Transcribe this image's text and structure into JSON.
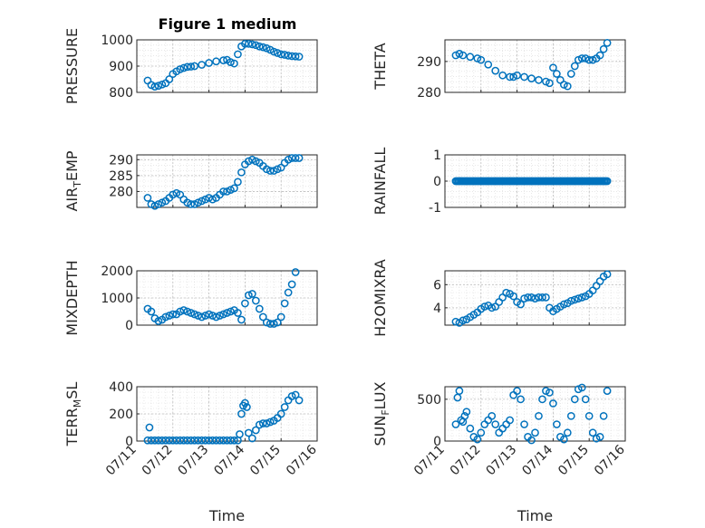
{
  "figure": {
    "title": "Figure 1 medium",
    "marker_color": "#0072BD",
    "grid": "dotted minor + major",
    "x_tick_labels": [
      "07/11",
      "07/12",
      "07/13",
      "07/14",
      "07/15",
      "07/16"
    ]
  },
  "chart_data": [
    {
      "type": "scatter",
      "ylabel": "PRESSURE",
      "title": "Figure 1 medium",
      "xlim": [
        0,
        5
      ],
      "ylim": [
        800,
        1000
      ],
      "yticks": [
        800,
        900,
        1000
      ],
      "x_tick_labels": [],
      "x": [
        0.3,
        0.4,
        0.5,
        0.6,
        0.7,
        0.8,
        0.9,
        1.0,
        1.1,
        1.2,
        1.3,
        1.4,
        1.5,
        1.6,
        1.8,
        2.0,
        2.2,
        2.4,
        2.5,
        2.6,
        2.7,
        2.8,
        2.9,
        3.0,
        3.1,
        3.2,
        3.3,
        3.4,
        3.5,
        3.6,
        3.7,
        3.8,
        3.9,
        4.0,
        4.1,
        4.2,
        4.3,
        4.4,
        4.5
      ],
      "values": [
        845,
        828,
        822,
        825,
        830,
        835,
        850,
        870,
        880,
        888,
        893,
        897,
        898,
        900,
        905,
        912,
        918,
        922,
        924,
        915,
        910,
        945,
        975,
        985,
        985,
        983,
        980,
        975,
        972,
        968,
        962,
        955,
        950,
        945,
        943,
        940,
        938,
        937,
        936
      ]
    },
    {
      "type": "scatter",
      "ylabel": "THETA",
      "xlim": [
        0,
        5
      ],
      "ylim": [
        280,
        297
      ],
      "yticks": [
        280,
        290
      ],
      "x_tick_labels": [],
      "x": [
        0.3,
        0.4,
        0.5,
        0.7,
        0.9,
        1.0,
        1.2,
        1.4,
        1.6,
        1.8,
        1.9,
        2.0,
        2.2,
        2.4,
        2.6,
        2.8,
        2.9,
        3.0,
        3.1,
        3.2,
        3.3,
        3.4,
        3.5,
        3.6,
        3.7,
        3.8,
        3.9,
        4.0,
        4.1,
        4.2,
        4.3,
        4.4,
        4.5
      ],
      "values": [
        292,
        292.5,
        292,
        291.5,
        291,
        290.5,
        289,
        287,
        285.5,
        285,
        285,
        285.5,
        285,
        284.5,
        284,
        283.5,
        283,
        288,
        286,
        284,
        282.5,
        282,
        286,
        288.5,
        290.5,
        291,
        291,
        290.5,
        290.5,
        291,
        292,
        294,
        296
      ]
    },
    {
      "type": "scatter",
      "ylabel": "AIR_TEMP",
      "xlim": [
        0,
        5
      ],
      "ylim": [
        275,
        291.5
      ],
      "yticks": [
        280,
        285,
        290
      ],
      "x_tick_labels": [],
      "x": [
        0.3,
        0.4,
        0.5,
        0.6,
        0.7,
        0.8,
        0.9,
        1.0,
        1.1,
        1.2,
        1.3,
        1.4,
        1.5,
        1.6,
        1.7,
        1.8,
        1.9,
        2.0,
        2.1,
        2.2,
        2.3,
        2.4,
        2.5,
        2.6,
        2.7,
        2.8,
        2.9,
        3.0,
        3.1,
        3.2,
        3.3,
        3.4,
        3.5,
        3.6,
        3.7,
        3.8,
        3.9,
        4.0,
        4.1,
        4.2,
        4.3,
        4.4,
        4.5
      ],
      "values": [
        278,
        276,
        275.5,
        276,
        276.5,
        277,
        278,
        279,
        279.5,
        279,
        277.5,
        276.5,
        276,
        276,
        276.5,
        277,
        277.5,
        278,
        277.5,
        278,
        279,
        280,
        280,
        280.5,
        281,
        283,
        286,
        288.5,
        289.5,
        290,
        289.5,
        289,
        288,
        287,
        286.5,
        286.5,
        287,
        287.5,
        289,
        290,
        290.5,
        290.5,
        290.5
      ]
    },
    {
      "type": "scatter",
      "ylabel": "RAINFALL",
      "xlim": [
        0,
        5
      ],
      "ylim": [
        -1,
        1
      ],
      "yticks": [
        -1,
        0,
        1
      ],
      "x_tick_labels": [],
      "x_range": [
        0.3,
        4.5
      ],
      "values_constant": 0,
      "n_points": 110
    },
    {
      "type": "scatter",
      "ylabel": "MIXDEPTH",
      "xlim": [
        0,
        5
      ],
      "ylim": [
        0,
        2000
      ],
      "yticks": [
        0,
        1000,
        2000
      ],
      "x_tick_labels": [],
      "x": [
        0.3,
        0.4,
        0.5,
        0.6,
        0.7,
        0.8,
        0.9,
        1.0,
        1.1,
        1.2,
        1.3,
        1.4,
        1.5,
        1.6,
        1.7,
        1.8,
        1.9,
        2.0,
        2.1,
        2.2,
        2.3,
        2.4,
        2.5,
        2.6,
        2.7,
        2.8,
        2.9,
        3.0,
        3.1,
        3.2,
        3.3,
        3.4,
        3.5,
        3.6,
        3.7,
        3.8,
        3.9,
        4.0,
        4.1,
        4.2,
        4.3,
        4.4
      ],
      "values": [
        600,
        500,
        250,
        150,
        200,
        300,
        350,
        400,
        400,
        500,
        550,
        500,
        450,
        400,
        350,
        300,
        350,
        400,
        350,
        300,
        350,
        400,
        450,
        500,
        550,
        450,
        200,
        800,
        1100,
        1150,
        900,
        600,
        300,
        100,
        50,
        50,
        100,
        300,
        800,
        1200,
        1500,
        1950
      ]
    },
    {
      "type": "scatter",
      "ylabel": "H2OMIXRA",
      "xlim": [
        0,
        5
      ],
      "ylim": [
        2.5,
        7.2
      ],
      "yticks": [
        4,
        6
      ],
      "x_tick_labels": [],
      "x": [
        0.3,
        0.4,
        0.5,
        0.6,
        0.7,
        0.8,
        0.9,
        1.0,
        1.1,
        1.2,
        1.3,
        1.4,
        1.5,
        1.6,
        1.7,
        1.8,
        1.9,
        2.0,
        2.1,
        2.2,
        2.3,
        2.4,
        2.5,
        2.6,
        2.7,
        2.8,
        2.9,
        3.0,
        3.1,
        3.2,
        3.3,
        3.4,
        3.5,
        3.6,
        3.7,
        3.8,
        3.9,
        4.0,
        4.1,
        4.2,
        4.3,
        4.4,
        4.5
      ],
      "values": [
        2.8,
        2.7,
        2.9,
        3.0,
        3.2,
        3.4,
        3.6,
        3.9,
        4.1,
        4.2,
        4.0,
        4.1,
        4.5,
        4.9,
        5.3,
        5.2,
        5.0,
        4.5,
        4.3,
        4.8,
        4.9,
        4.9,
        4.8,
        4.9,
        4.9,
        4.9,
        4.0,
        3.7,
        3.9,
        4.1,
        4.3,
        4.4,
        4.6,
        4.7,
        4.8,
        4.9,
        5.0,
        5.2,
        5.5,
        5.9,
        6.3,
        6.7,
        6.9
      ]
    },
    {
      "type": "scatter",
      "ylabel": "TERR_MSL",
      "xlabel": "Time",
      "xlim": [
        0,
        5
      ],
      "ylim": [
        0,
        400
      ],
      "yticks": [
        0,
        200,
        400
      ],
      "x_tick_labels": [
        "07/11",
        "07/12",
        "07/13",
        "07/14",
        "07/15",
        "07/16"
      ],
      "x": [
        0.3,
        0.35,
        0.4,
        0.5,
        0.6,
        0.7,
        0.8,
        0.9,
        1.0,
        1.1,
        1.2,
        1.3,
        1.4,
        1.5,
        1.6,
        1.7,
        1.8,
        1.9,
        2.0,
        2.1,
        2.2,
        2.3,
        2.4,
        2.5,
        2.6,
        2.7,
        2.8,
        2.85,
        2.9,
        2.95,
        3.0,
        3.05,
        3.1,
        3.2,
        3.3,
        3.4,
        3.5,
        3.6,
        3.7,
        3.8,
        3.9,
        4.0,
        4.1,
        4.2,
        4.3,
        4.4,
        4.5
      ],
      "values": [
        5,
        100,
        5,
        5,
        5,
        5,
        5,
        5,
        5,
        5,
        5,
        5,
        5,
        5,
        5,
        5,
        5,
        5,
        5,
        5,
        5,
        5,
        5,
        5,
        5,
        5,
        5,
        50,
        200,
        260,
        280,
        250,
        60,
        20,
        80,
        120,
        130,
        130,
        140,
        150,
        170,
        200,
        250,
        300,
        330,
        340,
        300
      ]
    },
    {
      "type": "scatter",
      "ylabel": "SUN_FLUX",
      "xlabel": "Time",
      "xlim": [
        0,
        5
      ],
      "ylim": [
        0,
        650
      ],
      "yticks": [
        0,
        500
      ],
      "x_tick_labels": [
        "07/11",
        "07/12",
        "07/13",
        "07/14",
        "07/15",
        "07/16"
      ],
      "x": [
        0.3,
        0.35,
        0.4,
        0.45,
        0.5,
        0.55,
        0.6,
        0.7,
        0.8,
        0.9,
        1.0,
        1.1,
        1.2,
        1.3,
        1.4,
        1.5,
        1.6,
        1.7,
        1.8,
        1.9,
        2.0,
        2.1,
        2.2,
        2.3,
        2.4,
        2.5,
        2.6,
        2.7,
        2.8,
        2.9,
        3.0,
        3.1,
        3.2,
        3.3,
        3.4,
        3.5,
        3.6,
        3.7,
        3.8,
        3.9,
        4.0,
        4.1,
        4.2,
        4.3,
        4.4,
        4.5
      ],
      "values": [
        200,
        520,
        600,
        250,
        230,
        300,
        350,
        150,
        50,
        20,
        100,
        200,
        250,
        300,
        200,
        100,
        150,
        200,
        250,
        550,
        600,
        500,
        200,
        50,
        10,
        100,
        300,
        500,
        600,
        580,
        450,
        200,
        50,
        20,
        100,
        300,
        500,
        620,
        640,
        500,
        300,
        100,
        30,
        50,
        300,
        600
      ]
    }
  ]
}
